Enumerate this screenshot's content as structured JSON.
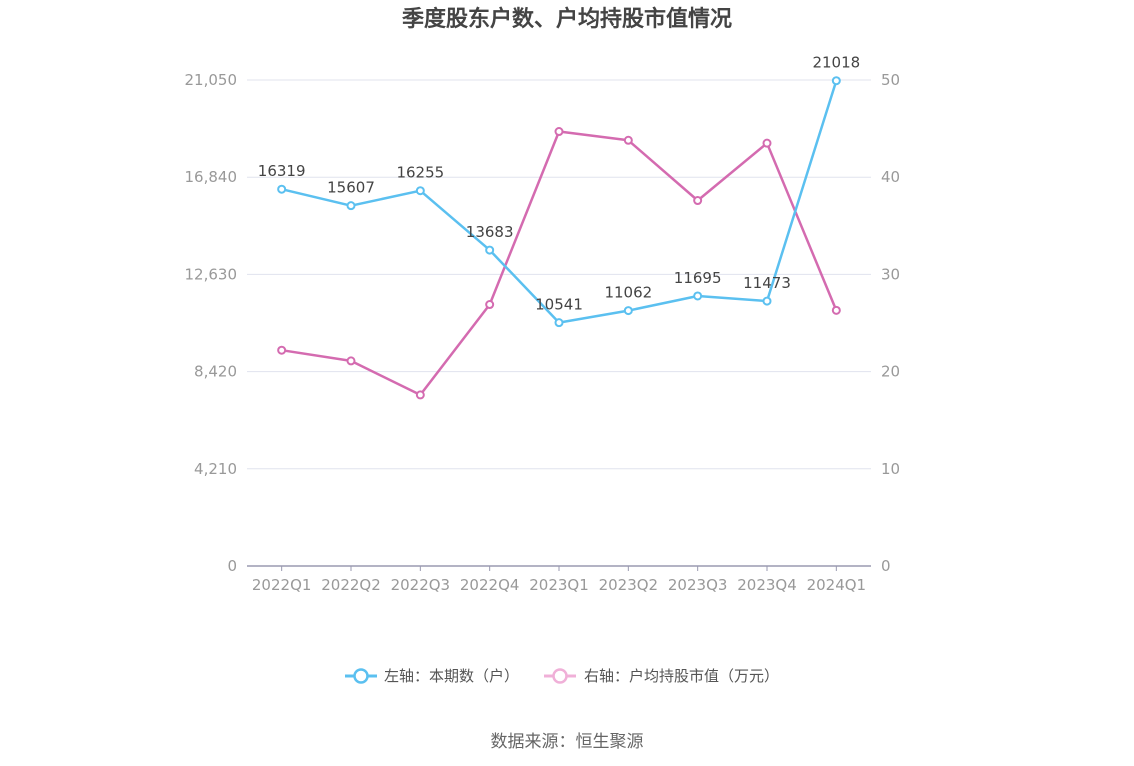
{
  "chart_data": {
    "type": "line",
    "title": "季度股东户数、户均持股市值情况",
    "categories": [
      "2022Q1",
      "2022Q2",
      "2022Q3",
      "2022Q4",
      "2023Q1",
      "2023Q2",
      "2023Q3",
      "2023Q4",
      "2024Q1"
    ],
    "left_axis": {
      "ticks": [
        "0",
        "4,210",
        "8,420",
        "12,630",
        "16,840",
        "21,050"
      ],
      "min": 0,
      "max": 21050
    },
    "right_axis": {
      "ticks": [
        "0",
        "10",
        "20",
        "30",
        "40",
        "50"
      ],
      "min": 0,
      "max": 50
    },
    "grid": true,
    "legend_position": "bottom",
    "series": [
      {
        "name": "左轴：本期数（户）",
        "axis": "left",
        "color": "#5bc0f0",
        "values": [
          16319,
          15607,
          16255,
          13683,
          10541,
          11062,
          11695,
          11473,
          21018
        ],
        "labels": [
          "16319",
          "15607",
          "16255",
          "13683",
          "10541",
          "11062",
          "11695",
          "11473",
          "21018"
        ]
      },
      {
        "name": "右轴：户均持股市值（万元）",
        "axis": "right",
        "color": "#d46bb0",
        "legend_color": "#f0b0d8",
        "values": [
          22.2,
          21.1,
          17.6,
          26.9,
          44.7,
          43.8,
          37.6,
          43.5,
          26.3
        ]
      }
    ]
  },
  "footer": {
    "source": "数据来源：恒生聚源"
  }
}
